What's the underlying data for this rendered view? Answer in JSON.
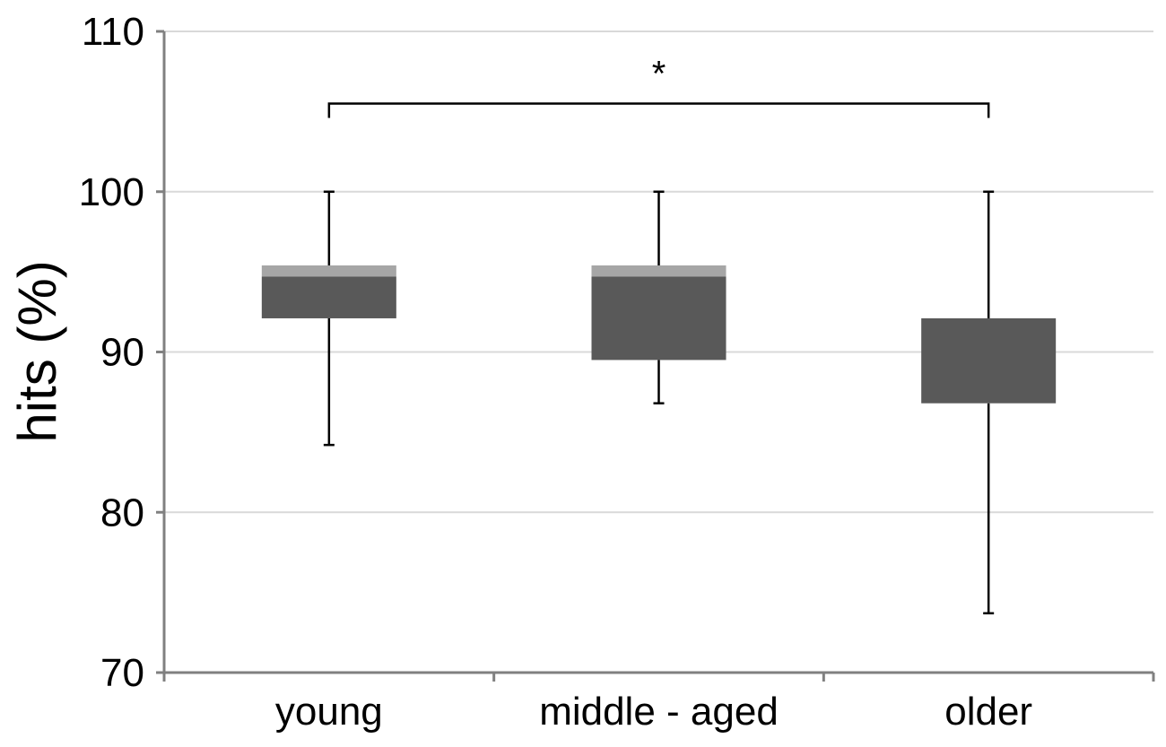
{
  "chart_data": {
    "type": "boxplot",
    "title": "",
    "xlabel": "",
    "ylabel": "hits (%)",
    "ylim": [
      70,
      110
    ],
    "yticks": [
      70,
      80,
      90,
      100,
      110
    ],
    "ytick_labels": [
      "70",
      "80",
      "90",
      "100",
      "110"
    ],
    "grid": true,
    "categories": [
      "young",
      "middle - aged",
      "older"
    ],
    "boxes": [
      {
        "category": "young",
        "min": 84.2,
        "q1": 92.1,
        "median": 94.7,
        "q3": 95.4,
        "max": 100
      },
      {
        "category": "middle - aged",
        "min": 86.8,
        "q1": 89.5,
        "median": 94.7,
        "q3": 95.4,
        "max": 100
      },
      {
        "category": "older",
        "min": 73.7,
        "q1": 86.8,
        "median": 92.1,
        "q3": 92.1,
        "max": 100
      }
    ],
    "annotations": [
      {
        "text": "*",
        "from": "young",
        "to": "older",
        "y": 105.5
      }
    ],
    "colors": {
      "box_lower": "#595959",
      "box_upper": "#a6a6a6",
      "whisker": "#000000",
      "grid": "#d9d9d9",
      "axis": "#808080"
    }
  }
}
